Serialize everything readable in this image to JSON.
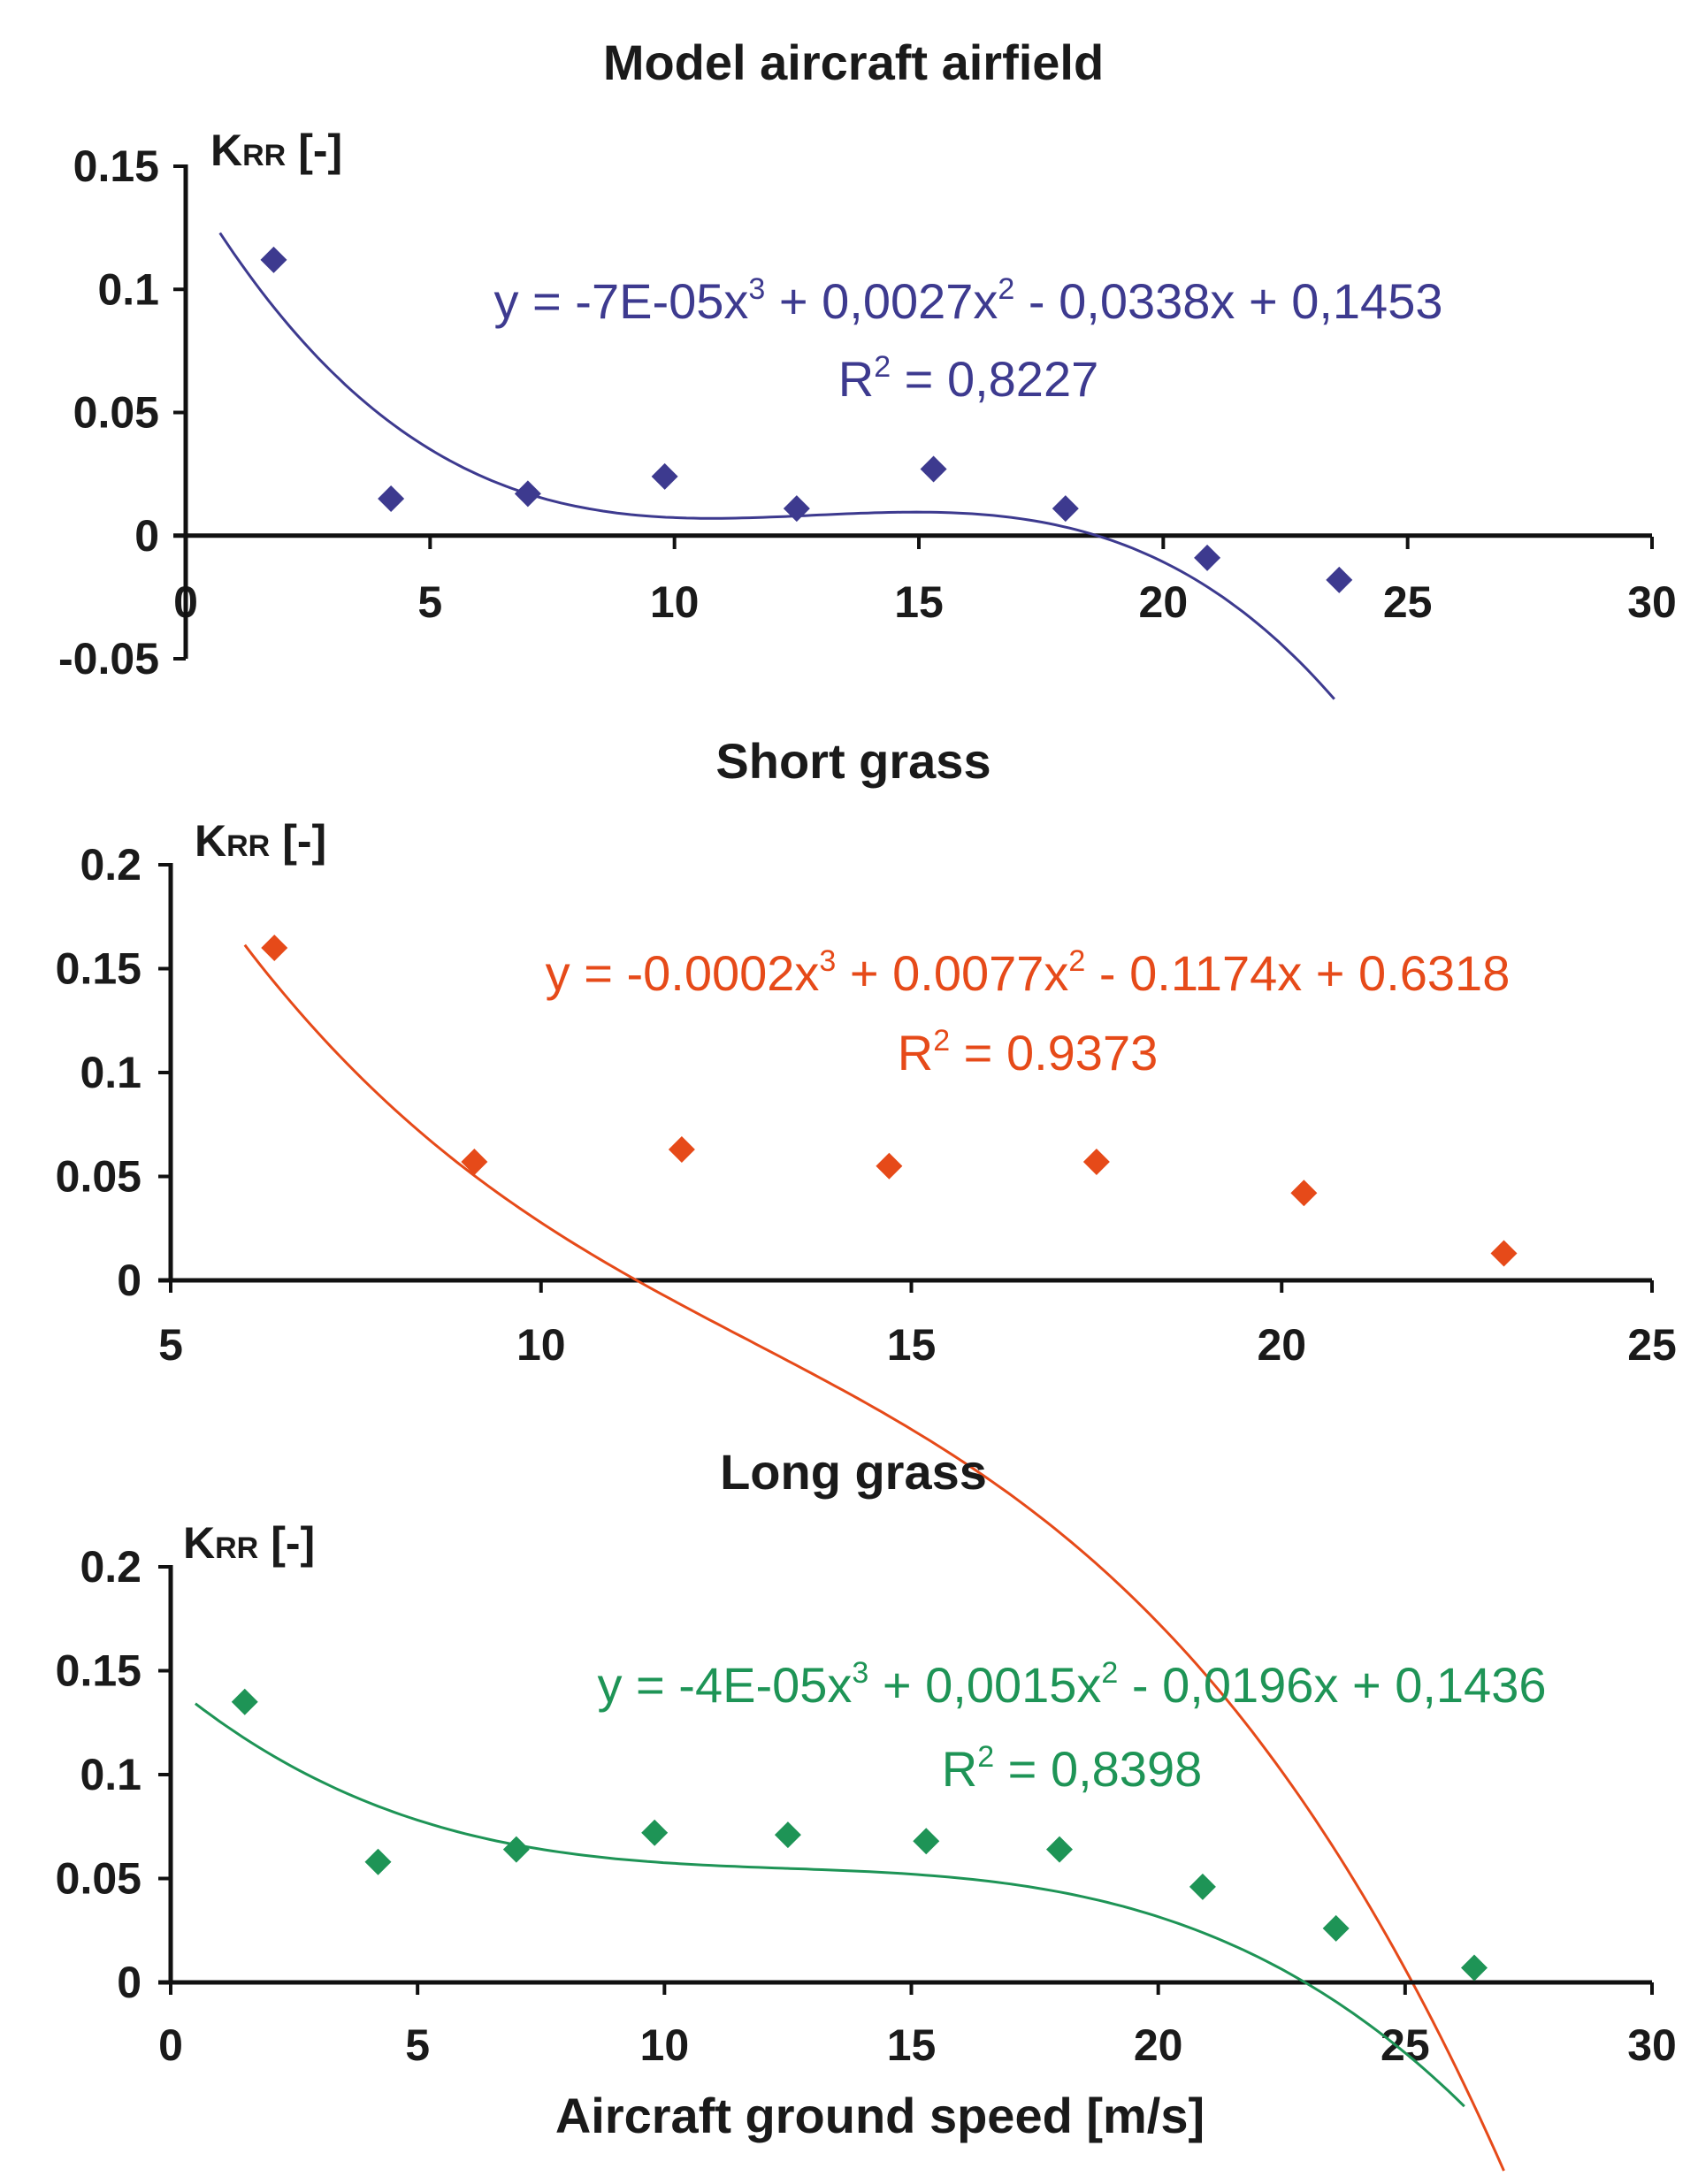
{
  "chart_data": [
    {
      "type": "scatter",
      "title": "Model aircraft airfield",
      "ylabel_main": "K",
      "ylabel_sub": "RR",
      "ylabel_unit": "[-]",
      "xlim": [
        0,
        30
      ],
      "ylim": [
        -0.05,
        0.15
      ],
      "xticks": [
        "0",
        "5",
        "10",
        "15",
        "20",
        "25",
        "30"
      ],
      "yticks": [
        "0.15",
        "0.1",
        "0.05",
        "0",
        "-0.05"
      ],
      "color": "#3d3a8f",
      "x": [
        1.8,
        4.2,
        7.0,
        9.8,
        12.5,
        15.3,
        18.0,
        20.9,
        23.6
      ],
      "y": [
        0.112,
        0.015,
        0.017,
        0.024,
        0.011,
        0.027,
        0.011,
        -0.009,
        -0.018
      ],
      "trend_coeffs": [
        -7e-05,
        0.0027,
        -0.0338,
        0.1453
      ],
      "trend_range": [
        0.7,
        23.5
      ],
      "equation": {
        "lead": "y = -7E-05x",
        "exp1": "3",
        "mid": " + 0,0027x",
        "exp2": "2",
        "tail": " - 0,0338x + 0,1453"
      },
      "r2": {
        "lead": "R",
        "exp": "2",
        "value": " = 0,8227"
      }
    },
    {
      "type": "scatter",
      "title": "Short grass",
      "ylabel_main": "K",
      "ylabel_sub": "RR",
      "ylabel_unit": "[-]",
      "xlim": [
        5,
        25
      ],
      "ylim": [
        0,
        0.2
      ],
      "xticks": [
        "5",
        "10",
        "15",
        "20",
        "25"
      ],
      "yticks": [
        "0.2",
        "0.15",
        "0.1",
        "0.05",
        "0"
      ],
      "color": "#e64a19",
      "x": [
        6.4,
        9.1,
        11.9,
        14.7,
        17.5,
        20.3,
        23.0
      ],
      "y": [
        0.16,
        0.057,
        0.063,
        0.055,
        0.057,
        0.042,
        0.013
      ],
      "trend_coeffs": [
        -0.0002,
        0.0077,
        -0.1174,
        0.6318
      ],
      "trend_range": [
        6.0,
        23.0
      ],
      "equation": {
        "lead": "y = -0.0002x",
        "exp1": "3",
        "mid": " + 0.0077x",
        "exp2": "2",
        "tail": " - 0.1174x + 0.6318"
      },
      "r2": {
        "lead": "R",
        "exp": "2",
        "value": " = 0.9373"
      }
    },
    {
      "type": "scatter",
      "title": "Long grass",
      "ylabel_main": "K",
      "ylabel_sub": "RR",
      "ylabel_unit": "[-]",
      "xlabel": "Aircraft ground speed [m/s]",
      "xlim": [
        0,
        30
      ],
      "ylim": [
        0,
        0.2
      ],
      "xticks": [
        "0",
        "5",
        "10",
        "15",
        "20",
        "25",
        "30"
      ],
      "yticks": [
        "0.2",
        "0.15",
        "0.1",
        "0.05",
        "0"
      ],
      "color": "#1e9456",
      "x": [
        1.5,
        4.2,
        7.0,
        9.8,
        12.5,
        15.3,
        18.0,
        20.9,
        23.6,
        26.4
      ],
      "y": [
        0.135,
        0.058,
        0.064,
        0.072,
        0.071,
        0.068,
        0.064,
        0.046,
        0.026,
        0.007
      ],
      "trend_coeffs": [
        -4e-05,
        0.0015,
        -0.0196,
        0.1436
      ],
      "trend_range": [
        0.5,
        26.2
      ],
      "equation": {
        "lead": "y = -4E-05x",
        "exp1": "3",
        "mid": " + 0,0015x",
        "exp2": "2",
        "tail": " - 0,0196x + 0,1436"
      },
      "r2": {
        "lead": "R",
        "exp": "2",
        "value": " = 0,8398"
      }
    }
  ]
}
